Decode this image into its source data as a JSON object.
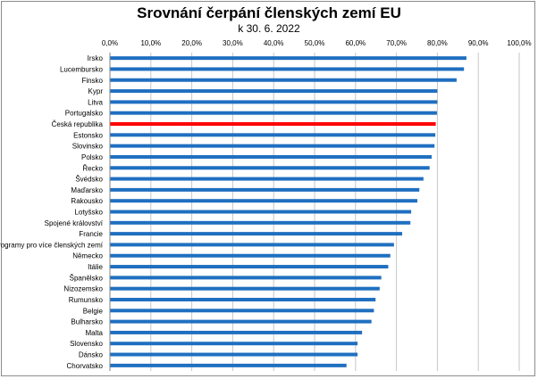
{
  "chart_data": {
    "type": "bar",
    "orientation": "horizontal",
    "title": "Srovnání čerpání členských zemí EU",
    "subtitle": "k 30. 6. 2022",
    "x_ticks": [
      "0,0%",
      "10,0%",
      "20,0%",
      "30,0%",
      "40,0%",
      "50,0%",
      "60,0%",
      "70,0%",
      "80,0%",
      "90,0%",
      "100,0%"
    ],
    "xlim": [
      0,
      100
    ],
    "grid": true,
    "bar_color": "#1f6fc0",
    "highlight_color": "#ff0000",
    "highlight_category": "Česká republika",
    "categories": [
      "Irsko",
      "Lucembursko",
      "Finsko",
      "Kypr",
      "Litva",
      "Portugalsko",
      "Česká republika",
      "Estonsko",
      "Slovinsko",
      "Polsko",
      "Řecko",
      "Švédsko",
      "Maďarsko",
      "Rakousko",
      "Lotyšsko",
      "Spojené království",
      "Francie",
      "Programy pro více členských zemí",
      "Německo",
      "Itálie",
      "Španělsko",
      "Nizozemsko",
      "Rumunsko",
      "Belgie",
      "Bulharsko",
      "Malta",
      "Slovensko",
      "Dánsko",
      "Chorvatsko"
    ],
    "values": [
      87.1,
      86.5,
      84.7,
      80.0,
      80.0,
      79.9,
      79.6,
      79.5,
      79.3,
      78.6,
      78.1,
      76.6,
      75.6,
      75.1,
      73.6,
      73.4,
      71.4,
      69.4,
      68.5,
      68.0,
      66.3,
      65.9,
      64.9,
      64.5,
      63.9,
      61.6,
      60.5,
      60.5,
      57.8
    ]
  }
}
